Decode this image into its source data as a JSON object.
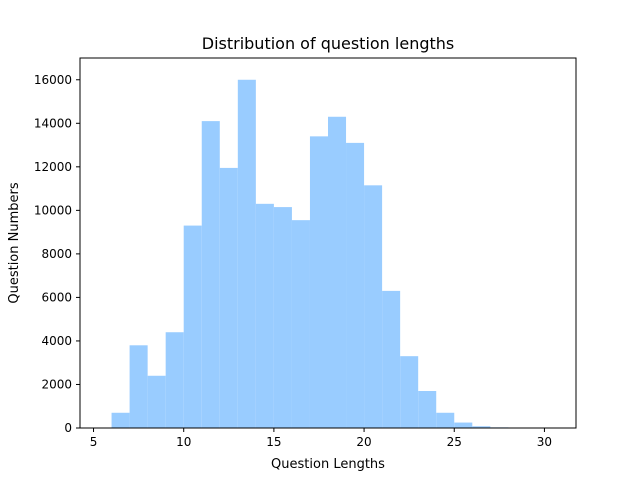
{
  "chart_data": {
    "type": "bar",
    "title": "Distribution of question lengths",
    "xlabel": "Question Lengths",
    "ylabel": "Question Numbers",
    "xlim": [
      4.25,
      31.75
    ],
    "ylim": [
      0,
      17000
    ],
    "xticks": [
      5,
      10,
      15,
      20,
      25,
      30
    ],
    "yticks": [
      0,
      2000,
      4000,
      6000,
      8000,
      10000,
      12000,
      14000,
      16000
    ],
    "bar_color": "#99ccff",
    "grid": false,
    "bins": [
      {
        "start": 6,
        "end": 7,
        "value": 700
      },
      {
        "start": 7,
        "end": 8,
        "value": 3800
      },
      {
        "start": 8,
        "end": 9,
        "value": 2400
      },
      {
        "start": 9,
        "end": 10,
        "value": 4400
      },
      {
        "start": 10,
        "end": 11,
        "value": 9300
      },
      {
        "start": 11,
        "end": 12,
        "value": 14100
      },
      {
        "start": 12,
        "end": 13,
        "value": 11950
      },
      {
        "start": 13,
        "end": 14,
        "value": 16000
      },
      {
        "start": 14,
        "end": 15,
        "value": 10300
      },
      {
        "start": 15,
        "end": 16,
        "value": 10150
      },
      {
        "start": 16,
        "end": 17,
        "value": 9550
      },
      {
        "start": 17,
        "end": 18,
        "value": 13400
      },
      {
        "start": 18,
        "end": 19,
        "value": 14300
      },
      {
        "start": 19,
        "end": 20,
        "value": 13100
      },
      {
        "start": 20,
        "end": 21,
        "value": 11150
      },
      {
        "start": 21,
        "end": 22,
        "value": 6300
      },
      {
        "start": 22,
        "end": 23,
        "value": 3300
      },
      {
        "start": 23,
        "end": 24,
        "value": 1700
      },
      {
        "start": 24,
        "end": 25,
        "value": 700
      },
      {
        "start": 25,
        "end": 26,
        "value": 250
      },
      {
        "start": 26,
        "end": 27,
        "value": 80
      },
      {
        "start": 27,
        "end": 28,
        "value": 30
      },
      {
        "start": 28,
        "end": 29,
        "value": 5
      },
      {
        "start": 29,
        "end": 30,
        "value": 2
      },
      {
        "start": 30,
        "end": 31,
        "value": 1
      }
    ]
  }
}
